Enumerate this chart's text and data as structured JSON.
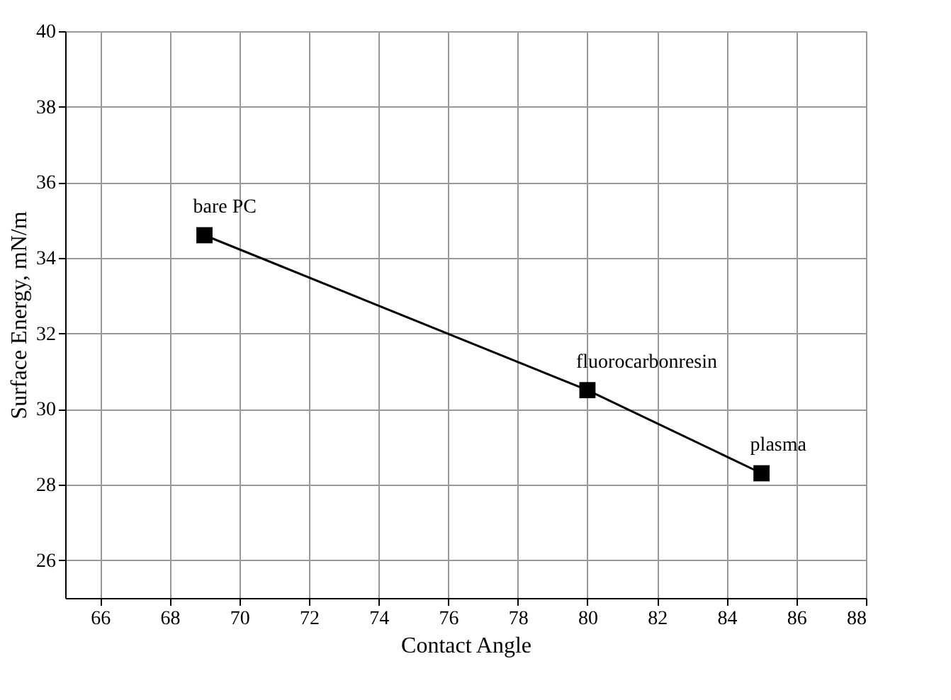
{
  "chart_data": {
    "type": "line",
    "xlabel": "Contact Angle",
    "ylabel": "Surface Energy, mN/m",
    "x": [
      69,
      80,
      85
    ],
    "series": [
      {
        "color": "#000000",
        "values": [
          34.6,
          30.5,
          28.3
        ]
      }
    ],
    "annotations": [
      {
        "text": "bare PC",
        "x": 69,
        "y": 34.6
      },
      {
        "text": "fluorocarbonresin",
        "x": 80,
        "y": 30.5
      },
      {
        "text": "plasma",
        "x": 85,
        "y": 28.3
      }
    ],
    "xlim": [
      65,
      88
    ],
    "xticks": [
      66,
      68,
      70,
      72,
      74,
      76,
      78,
      80,
      82,
      84,
      86,
      88
    ],
    "ylim": [
      25,
      40
    ],
    "yticks": [
      26,
      28,
      30,
      32,
      34,
      36,
      38,
      40
    ],
    "grid": true,
    "marker": "square",
    "line_style": "solid"
  }
}
